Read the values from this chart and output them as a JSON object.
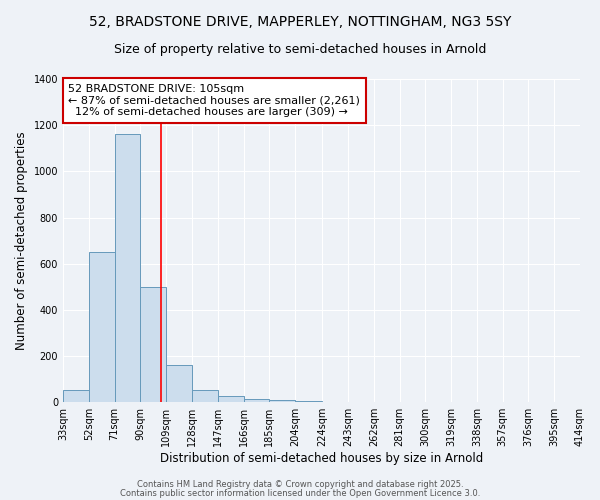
{
  "title_line1": "52, BRADSTONE DRIVE, MAPPERLEY, NOTTINGHAM, NG3 5SY",
  "title_line2": "Size of property relative to semi-detached houses in Arnold",
  "xlabel": "Distribution of semi-detached houses by size in Arnold",
  "ylabel": "Number of semi-detached properties",
  "bin_labels": [
    "33sqm",
    "52sqm",
    "71sqm",
    "90sqm",
    "109sqm",
    "128sqm",
    "147sqm",
    "166sqm",
    "185sqm",
    "204sqm",
    "224sqm",
    "243sqm",
    "262sqm",
    "281sqm",
    "300sqm",
    "319sqm",
    "338sqm",
    "357sqm",
    "376sqm",
    "395sqm",
    "414sqm"
  ],
  "bin_edges": [
    33,
    52,
    71,
    90,
    109,
    128,
    147,
    166,
    185,
    204,
    224,
    243,
    262,
    281,
    300,
    319,
    338,
    357,
    376,
    395,
    414
  ],
  "bin_values": [
    55,
    650,
    1160,
    500,
    160,
    55,
    25,
    15,
    10,
    5,
    0,
    0,
    0,
    0,
    0,
    0,
    0,
    0,
    0,
    0
  ],
  "bar_color": "#ccdded",
  "bar_edge_color": "#6699bb",
  "red_line_x": 105,
  "annotation_line1": "52 BRADSTONE DRIVE: 105sqm",
  "annotation_line2": "← 87% of semi-detached houses are smaller (2,261)",
  "annotation_line3": "  12% of semi-detached houses are larger (309) →",
  "annotation_box_color": "#ffffff",
  "annotation_edge_color": "#cc0000",
  "ylim": [
    0,
    1400
  ],
  "yticks": [
    0,
    200,
    400,
    600,
    800,
    1000,
    1200,
    1400
  ],
  "background_color": "#eef2f7",
  "plot_bg_color": "#eef2f7",
  "footer_line1": "Contains HM Land Registry data © Crown copyright and database right 2025.",
  "footer_line2": "Contains public sector information licensed under the Open Government Licence 3.0.",
  "title_fontsize": 10,
  "subtitle_fontsize": 9,
  "axis_label_fontsize": 8.5,
  "tick_fontsize": 7,
  "annotation_fontsize": 8,
  "footer_fontsize": 6
}
